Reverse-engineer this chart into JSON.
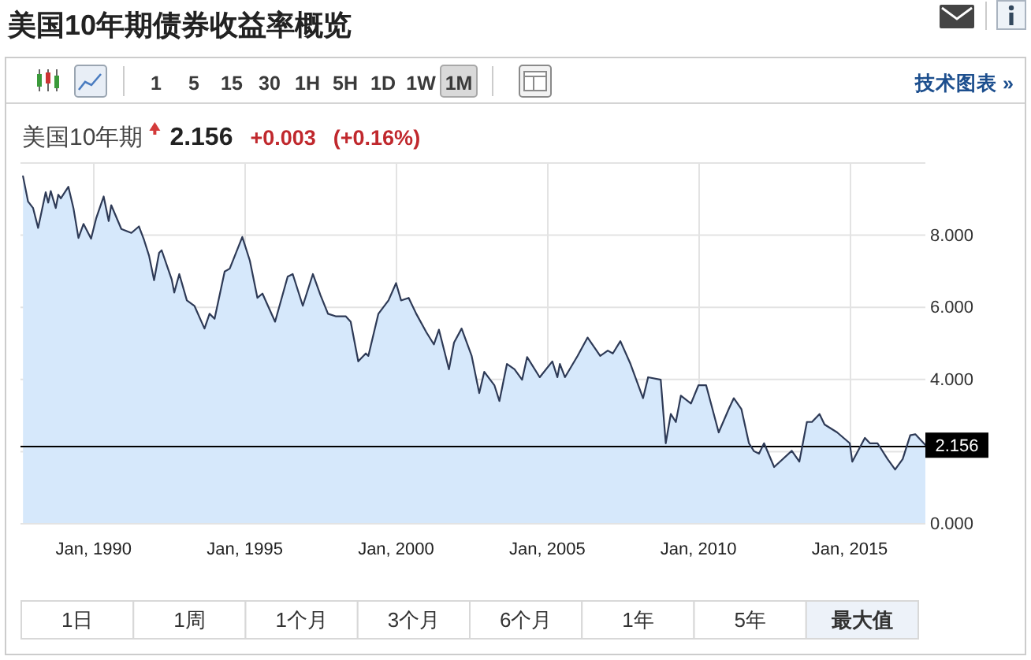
{
  "chart_data": {
    "type": "area",
    "title": "美国10年期债券收益率概览",
    "annotations": [
      "美国10年期",
      "2.156",
      "+0.003",
      "(+0.16%)",
      "1",
      "5",
      "15",
      "30",
      "1H",
      "5H",
      "1D",
      "1W",
      "1M",
      "技术图表 »",
      "1日",
      "1周",
      "1个月",
      "3个月",
      "6个月",
      "1年",
      "5年",
      "最大值"
    ],
    "x": [
      "1987-09",
      "1987-11",
      "1988-01",
      "1988-03",
      "1988-06",
      "1988-07",
      "1988-08",
      "1988-10",
      "1988-11",
      "1988-12",
      "1989-03",
      "1989-05",
      "1989-07",
      "1989-09",
      "1989-12",
      "1990-02",
      "1990-05",
      "1990-07",
      "1990-08",
      "1990-12",
      "1991-04",
      "1991-07",
      "1991-09",
      "1991-11",
      "1992-01",
      "1992-03",
      "1992-04",
      "1992-08",
      "1992-09",
      "1992-11",
      "1993-02",
      "1993-05",
      "1993-09",
      "1993-11",
      "1994-01",
      "1994-05",
      "1994-07",
      "1994-12",
      "1995-03",
      "1995-06",
      "1995-08",
      "1996-01",
      "1996-06",
      "1996-08",
      "1996-12",
      "1997-04",
      "1997-07",
      "1997-10",
      "1998-01",
      "1998-05",
      "1998-07",
      "1998-10",
      "1999-01",
      "1999-02",
      "1999-06",
      "1999-10",
      "2000-01",
      "2000-03",
      "2000-06",
      "2000-09",
      "2001-01",
      "2001-04",
      "2001-06",
      "2001-10",
      "2001-12",
      "2002-03",
      "2002-07",
      "2002-10",
      "2002-12",
      "2003-04",
      "2003-06",
      "2003-09",
      "2003-12",
      "2004-03",
      "2004-05",
      "2004-10",
      "2005-03",
      "2005-05",
      "2005-06",
      "2005-08",
      "2006-01",
      "2006-05",
      "2006-10",
      "2007-01",
      "2007-03",
      "2007-06",
      "2007-10",
      "2008-03",
      "2008-05",
      "2008-10",
      "2008-12",
      "2009-02",
      "2009-04",
      "2009-06",
      "2009-10",
      "2010-01",
      "2010-04",
      "2010-09",
      "2011-01",
      "2011-03",
      "2011-06",
      "2011-09",
      "2011-11",
      "2012-01",
      "2012-03",
      "2012-07",
      "2013-02",
      "2013-05",
      "2013-08",
      "2013-10",
      "2014-01",
      "2014-03",
      "2014-08",
      "2015-01",
      "2015-02",
      "2015-07",
      "2015-09",
      "2015-12",
      "2016-04",
      "2016-07",
      "2016-10",
      "2017-01",
      "2017-03",
      "2017-07"
    ],
    "series": [
      {
        "color": "#2e3a56",
        "values": [
          9.61,
          8.91,
          8.73,
          8.18,
          9.17,
          8.88,
          9.2,
          8.73,
          9.1,
          9.0,
          9.32,
          8.73,
          7.9,
          8.29,
          7.88,
          8.44,
          9.05,
          8.37,
          8.81,
          8.15,
          8.04,
          8.22,
          7.85,
          7.41,
          6.73,
          7.49,
          7.56,
          6.75,
          6.39,
          6.9,
          6.17,
          6.02,
          5.39,
          5.8,
          5.66,
          6.97,
          7.05,
          7.93,
          7.27,
          6.24,
          6.36,
          5.58,
          6.83,
          6.9,
          6.02,
          6.9,
          6.32,
          5.8,
          5.73,
          5.73,
          5.58,
          4.48,
          4.7,
          4.63,
          5.8,
          6.17,
          6.65,
          6.17,
          6.24,
          5.8,
          5.29,
          4.95,
          5.36,
          4.26,
          5.0,
          5.39,
          4.63,
          3.6,
          4.19,
          3.82,
          3.38,
          4.41,
          4.26,
          3.97,
          4.6,
          4.04,
          4.48,
          4.04,
          4.41,
          4.04,
          4.63,
          5.14,
          4.63,
          4.78,
          4.7,
          5.04,
          4.41,
          3.46,
          4.04,
          3.97,
          2.21,
          3.02,
          2.8,
          3.53,
          3.31,
          3.82,
          3.82,
          2.51,
          3.16,
          3.46,
          3.16,
          2.21,
          1.99,
          1.92,
          2.21,
          1.55,
          2.0,
          1.7,
          2.8,
          2.8,
          3.02,
          2.73,
          2.51,
          2.21,
          1.7,
          2.36,
          2.21,
          2.21,
          1.77,
          1.48,
          1.77,
          2.43,
          2.46,
          2.16
        ]
      }
    ],
    "xlim": [
      "1987-08",
      "2017-07"
    ],
    "xticks": [
      {
        "value": "1990-01",
        "label": "Jan, 1990"
      },
      {
        "value": "1995-01",
        "label": "Jan, 1995"
      },
      {
        "value": "2000-01",
        "label": "Jan, 2000"
      },
      {
        "value": "2005-01",
        "label": "Jan, 2005"
      },
      {
        "value": "2010-01",
        "label": "Jan, 2010"
      },
      {
        "value": "2015-01",
        "label": "Jan, 2015"
      }
    ],
    "ylim": [
      0,
      10
    ],
    "yticks": [
      {
        "value": 0,
        "label": "0.000"
      },
      {
        "value": 2,
        "label": null
      },
      {
        "value": 4,
        "label": "4.000"
      },
      {
        "value": 6,
        "label": "6.000"
      },
      {
        "value": 8,
        "label": "8.000"
      },
      {
        "value": 10,
        "label": null
      }
    ],
    "grid": true,
    "ref_lines": [
      {
        "axis": "y",
        "value": 2.156,
        "label": "2.156",
        "color": "#000000"
      }
    ]
  }
}
